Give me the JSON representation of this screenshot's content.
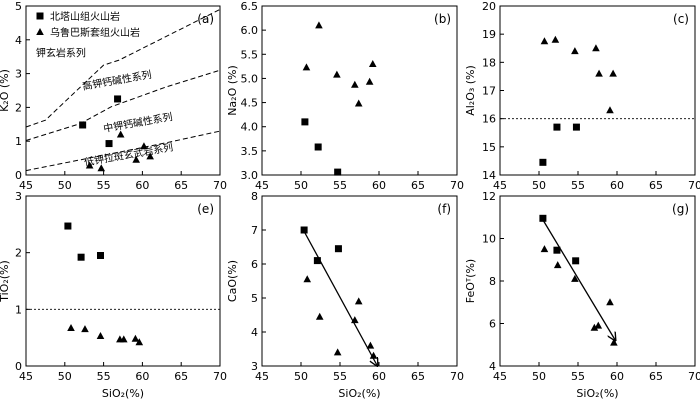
{
  "chart_data": [
    {
      "type": "scatter",
      "panel_label": "(a)",
      "xlabel": "",
      "ylabel": "K₂O (%)",
      "xlim": [
        45,
        70
      ],
      "ylim": [
        0,
        5
      ],
      "xticks": [
        "45",
        "50",
        "55",
        "60",
        "65",
        "70"
      ],
      "yticks": [
        "0",
        "1",
        "2",
        "3",
        "4",
        "5"
      ],
      "legend": [
        {
          "marker": "square",
          "label": "北塔山组火山岩"
        },
        {
          "marker": "triangle",
          "label": "乌鲁巴斯套组火山岩"
        }
      ],
      "series": [
        {
          "marker": "square",
          "points": [
            [
              52.3,
              1.48
            ],
            [
              56.8,
              2.25
            ],
            [
              55.7,
              0.93
            ]
          ]
        },
        {
          "marker": "triangle",
          "points": [
            [
              53.2,
              0.28
            ],
            [
              54.7,
              0.2
            ],
            [
              57.2,
              1.2
            ],
            [
              60.2,
              0.85
            ],
            [
              59.2,
              0.45
            ],
            [
              61.0,
              0.55
            ]
          ]
        }
      ],
      "boundaries": [
        {
          "style": "dashed",
          "points": [
            [
              45,
              1.42
            ],
            [
              47.5,
              1.62
            ],
            [
              52,
              2.6
            ],
            [
              55,
              3.25
            ],
            [
              57,
              3.4
            ],
            [
              70,
              4.9
            ]
          ]
        },
        {
          "style": "dashed",
          "points": [
            [
              45,
              1.02
            ],
            [
              52,
              1.52
            ],
            [
              56,
              2.02
            ],
            [
              63,
              2.6
            ],
            [
              70,
              3.1
            ]
          ]
        },
        {
          "style": "dashed",
          "points": [
            [
              45,
              0.13
            ],
            [
              63,
              0.95
            ],
            [
              70,
              1.3
            ]
          ]
        }
      ],
      "annotations": [
        {
          "text": "钾玄岩系列",
          "x": 49.5,
          "y": 3.5,
          "angle": 0
        },
        {
          "text": "高钾钙碱性系列",
          "x": 56.8,
          "y": 2.7,
          "angle": -10
        },
        {
          "text": "中钾钙碱性系列",
          "x": 59.5,
          "y": 1.45,
          "angle": -10
        },
        {
          "text": "低钾拉斑玄武岩系列",
          "x": 58.3,
          "y": 0.5,
          "angle": -10
        }
      ]
    },
    {
      "type": "scatter",
      "panel_label": "(b)",
      "xlabel": "",
      "ylabel": "Na₂O (%)",
      "xlim": [
        45,
        70
      ],
      "ylim": [
        3.0,
        6.5
      ],
      "xticks": [
        "45",
        "50",
        "55",
        "60",
        "65",
        "70"
      ],
      "yticks": [
        "3.0",
        "3.5",
        "4.0",
        "4.5",
        "5.0",
        "5.5",
        "6.0",
        "6.5"
      ],
      "series": [
        {
          "marker": "square",
          "points": [
            [
              50.5,
              4.1
            ],
            [
              52.2,
              3.58
            ],
            [
              54.7,
              3.06
            ]
          ]
        },
        {
          "marker": "triangle",
          "points": [
            [
              50.7,
              5.23
            ],
            [
              52.3,
              6.1
            ],
            [
              54.6,
              5.08
            ],
            [
              56.9,
              4.87
            ],
            [
              57.4,
              4.48
            ],
            [
              58.8,
              4.93
            ],
            [
              59.2,
              5.3
            ]
          ]
        }
      ]
    },
    {
      "type": "scatter",
      "panel_label": "(c)",
      "xlabel": "",
      "ylabel": "Al₂O₃ (%)",
      "xlim": [
        45,
        70
      ],
      "ylim": [
        14,
        20
      ],
      "xticks": [
        "45",
        "50",
        "55",
        "60",
        "65",
        "70"
      ],
      "yticks": [
        "14",
        "15",
        "16",
        "17",
        "18",
        "19",
        "20"
      ],
      "reference_lines": [
        {
          "y": 16,
          "style": "dotted"
        }
      ],
      "series": [
        {
          "marker": "square",
          "points": [
            [
              50.5,
              14.45
            ],
            [
              52.3,
              15.7
            ],
            [
              54.8,
              15.7
            ]
          ]
        },
        {
          "marker": "triangle",
          "points": [
            [
              50.7,
              18.75
            ],
            [
              52.1,
              18.8
            ],
            [
              54.6,
              18.4
            ],
            [
              57.3,
              18.5
            ],
            [
              57.7,
              17.6
            ],
            [
              59.1,
              16.3
            ],
            [
              59.5,
              17.6
            ]
          ]
        }
      ]
    },
    {
      "type": "scatter",
      "panel_label": "(e)",
      "xlabel": "SiO₂(%)",
      "ylabel": "TiO₂(%)",
      "xlim": [
        45,
        70
      ],
      "ylim": [
        0,
        3
      ],
      "xticks": [
        "45",
        "50",
        "55",
        "60",
        "65",
        "70"
      ],
      "yticks": [
        "0",
        "1",
        "2",
        "3"
      ],
      "reference_lines": [
        {
          "y": 1,
          "style": "dotted"
        }
      ],
      "series": [
        {
          "marker": "square",
          "points": [
            [
              50.4,
              2.47
            ],
            [
              52.1,
              1.92
            ],
            [
              54.6,
              1.95
            ]
          ]
        },
        {
          "marker": "triangle",
          "points": [
            [
              50.8,
              0.67
            ],
            [
              52.6,
              0.65
            ],
            [
              54.6,
              0.53
            ],
            [
              57.1,
              0.47
            ],
            [
              57.6,
              0.47
            ],
            [
              59.1,
              0.48
            ],
            [
              59.6,
              0.42
            ]
          ]
        }
      ]
    },
    {
      "type": "scatter",
      "panel_label": "(f)",
      "xlabel": "SiO₂(%)",
      "ylabel": "CaO(%)",
      "xlim": [
        45,
        70
      ],
      "ylim": [
        3,
        8
      ],
      "xticks": [
        "45",
        "50",
        "55",
        "60",
        "65",
        "70"
      ],
      "yticks": [
        "3",
        "4",
        "5",
        "6",
        "7",
        "8"
      ],
      "trend_arrow": {
        "from": [
          50.3,
          7.0
        ],
        "to": [
          59.8,
          3.0
        ]
      },
      "series": [
        {
          "marker": "square",
          "points": [
            [
              50.4,
              7.0
            ],
            [
              52.1,
              6.1
            ],
            [
              54.8,
              6.45
            ]
          ]
        },
        {
          "marker": "triangle",
          "points": [
            [
              50.8,
              5.55
            ],
            [
              52.4,
              4.45
            ],
            [
              54.7,
              3.4
            ],
            [
              56.9,
              4.35
            ],
            [
              57.4,
              4.9
            ],
            [
              58.9,
              3.6
            ],
            [
              59.3,
              3.3
            ]
          ]
        }
      ]
    },
    {
      "type": "scatter",
      "panel_label": "(g)",
      "xlabel": "SiO₂(%)",
      "ylabel": "FeOᵀ(%)",
      "xlim": [
        45,
        70
      ],
      "ylim": [
        4,
        12
      ],
      "xticks": [
        "45",
        "50",
        "55",
        "60",
        "65",
        "70"
      ],
      "yticks": [
        "4",
        "6",
        "8",
        "10",
        "12"
      ],
      "trend_arrow": {
        "from": [
          50.3,
          11.0
        ],
        "to": [
          59.8,
          5.2
        ]
      },
      "series": [
        {
          "marker": "square",
          "points": [
            [
              50.5,
              10.95
            ],
            [
              52.3,
              9.45
            ],
            [
              54.7,
              8.95
            ]
          ]
        },
        {
          "marker": "triangle",
          "points": [
            [
              50.7,
              9.5
            ],
            [
              52.4,
              8.75
            ],
            [
              54.6,
              8.1
            ],
            [
              57.1,
              5.8
            ],
            [
              57.6,
              5.9
            ],
            [
              59.1,
              7.0
            ],
            [
              59.6,
              5.1
            ]
          ]
        }
      ]
    }
  ]
}
